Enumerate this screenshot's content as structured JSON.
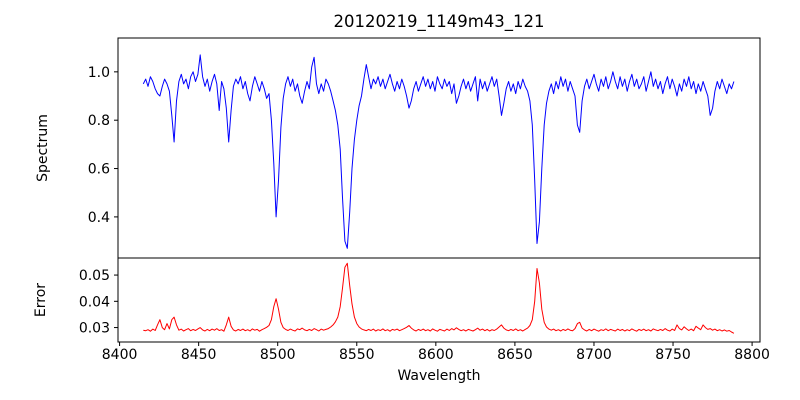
{
  "chart_data": {
    "type": "line",
    "title": "20120219_1149m43_121",
    "xlabel": "Wavelength",
    "grid": false,
    "legend": null,
    "xlim": [
      8399,
      8805
    ],
    "xticks": [
      8400,
      8450,
      8500,
      8550,
      8600,
      8650,
      8700,
      8750,
      8800
    ],
    "xtick_labels": [
      "8400",
      "8450",
      "8500",
      "8550",
      "8600",
      "8650",
      "8700",
      "8750",
      "8800"
    ],
    "panels": [
      {
        "ylabel": "Spectrum",
        "ylim": [
          0.23,
          1.14
        ],
        "yticks": [
          0.4,
          0.6,
          0.8,
          1.0
        ],
        "ytick_labels": [
          "0.4",
          "0.6",
          "0.8",
          "1.0"
        ],
        "series": {
          "name": "spectrum",
          "color": "#0000ff",
          "x_start": 8415,
          "x_step": 1.5,
          "n_points": 250,
          "values": [
            0.95,
            0.97,
            0.94,
            0.98,
            0.96,
            0.93,
            0.91,
            0.9,
            0.94,
            0.97,
            0.95,
            0.92,
            0.82,
            0.71,
            0.88,
            0.96,
            0.99,
            0.95,
            0.97,
            0.93,
            0.98,
            1.0,
            0.96,
            0.99,
            1.07,
            0.98,
            0.94,
            0.97,
            0.92,
            0.96,
            0.99,
            0.95,
            0.84,
            0.96,
            0.93,
            0.85,
            0.71,
            0.84,
            0.94,
            0.97,
            0.95,
            0.98,
            0.93,
            0.96,
            0.91,
            0.88,
            0.94,
            0.98,
            0.95,
            0.92,
            0.96,
            0.93,
            0.89,
            0.91,
            0.8,
            0.62,
            0.4,
            0.55,
            0.77,
            0.89,
            0.95,
            0.98,
            0.94,
            0.97,
            0.92,
            0.95,
            0.9,
            0.87,
            0.92,
            0.96,
            0.93,
            1.02,
            1.06,
            0.95,
            0.91,
            0.95,
            0.92,
            0.97,
            0.95,
            0.92,
            0.88,
            0.84,
            0.78,
            0.68,
            0.48,
            0.3,
            0.27,
            0.42,
            0.6,
            0.72,
            0.8,
            0.86,
            0.9,
            0.97,
            1.03,
            0.98,
            0.93,
            0.97,
            0.95,
            0.98,
            0.94,
            0.97,
            0.93,
            0.96,
            0.99,
            0.95,
            0.92,
            0.96,
            0.93,
            0.97,
            0.94,
            0.9,
            0.85,
            0.88,
            0.93,
            0.96,
            0.92,
            0.95,
            0.98,
            0.94,
            0.97,
            0.93,
            0.96,
            0.92,
            0.98,
            0.95,
            0.93,
            0.97,
            0.94,
            0.96,
            0.91,
            0.95,
            0.87,
            0.9,
            0.94,
            0.97,
            0.93,
            0.96,
            0.92,
            0.95,
            0.98,
            0.88,
            0.97,
            0.93,
            0.96,
            0.92,
            0.95,
            0.98,
            0.94,
            0.97,
            0.9,
            0.82,
            0.87,
            0.93,
            0.96,
            0.92,
            0.95,
            0.91,
            0.96,
            0.93,
            0.97,
            0.94,
            0.92,
            0.88,
            0.78,
            0.55,
            0.29,
            0.38,
            0.6,
            0.78,
            0.87,
            0.92,
            0.95,
            0.91,
            0.96,
            0.93,
            0.98,
            0.94,
            0.97,
            0.92,
            0.96,
            0.93,
            0.9,
            0.78,
            0.75,
            0.88,
            0.94,
            0.97,
            0.93,
            0.96,
            0.99,
            0.95,
            0.92,
            0.97,
            0.94,
            0.98,
            0.93,
            0.96,
            1.0,
            0.96,
            0.93,
            0.98,
            0.94,
            0.97,
            0.92,
            0.96,
            0.99,
            0.94,
            0.97,
            0.93,
            0.95,
            0.98,
            0.92,
            0.96,
            1.0,
            0.94,
            0.97,
            0.93,
            0.96,
            0.91,
            0.95,
            0.98,
            0.93,
            0.97,
            0.94,
            0.9,
            0.95,
            0.92,
            0.97,
            0.94,
            0.98,
            0.93,
            0.96,
            0.91,
            0.95,
            0.92,
            0.96,
            0.93,
            0.9,
            0.82,
            0.85,
            0.92,
            0.96,
            0.93,
            0.97,
            0.94,
            0.91,
            0.95,
            0.93,
            0.96
          ]
        }
      },
      {
        "ylabel": "Error",
        "ylim": [
          0.0245,
          0.0565
        ],
        "yticks": [
          0.03,
          0.04,
          0.05
        ],
        "ytick_labels": [
          "0.03",
          "0.04",
          "0.05"
        ],
        "series": {
          "name": "error",
          "color": "#ff0000",
          "x_start": 8415,
          "x_step": 1.5,
          "n_points": 250,
          "values": [
            0.029,
            0.0288,
            0.0292,
            0.0286,
            0.0294,
            0.0289,
            0.031,
            0.033,
            0.03,
            0.0292,
            0.0315,
            0.0295,
            0.033,
            0.034,
            0.031,
            0.029,
            0.0294,
            0.0287,
            0.0292,
            0.0296,
            0.0288,
            0.0293,
            0.0289,
            0.0295,
            0.03,
            0.0291,
            0.0287,
            0.0293,
            0.0288,
            0.0294,
            0.029,
            0.0296,
            0.0289,
            0.0292,
            0.0286,
            0.031,
            0.034,
            0.0305,
            0.0291,
            0.0287,
            0.0293,
            0.0289,
            0.0294,
            0.0288,
            0.0292,
            0.0287,
            0.0295,
            0.029,
            0.0293,
            0.0286,
            0.0292,
            0.0296,
            0.0301,
            0.0308,
            0.033,
            0.038,
            0.041,
            0.037,
            0.032,
            0.03,
            0.0293,
            0.0289,
            0.0294,
            0.029,
            0.0287,
            0.0295,
            0.0292,
            0.0298,
            0.0291,
            0.0288,
            0.0293,
            0.0289,
            0.0296,
            0.0292,
            0.0287,
            0.0294,
            0.029,
            0.0293,
            0.0296,
            0.0302,
            0.031,
            0.0322,
            0.034,
            0.038,
            0.045,
            0.053,
            0.0545,
            0.046,
            0.039,
            0.034,
            0.0315,
            0.0302,
            0.0295,
            0.0291,
            0.0288,
            0.0293,
            0.0289,
            0.0294,
            0.0287,
            0.0292,
            0.0289,
            0.0295,
            0.0288,
            0.0292,
            0.0286,
            0.0293,
            0.029,
            0.0294,
            0.0288,
            0.0292,
            0.0296,
            0.0301,
            0.0308,
            0.0298,
            0.0291,
            0.0287,
            0.0293,
            0.0289,
            0.0294,
            0.0288,
            0.0292,
            0.0287,
            0.0295,
            0.029,
            0.0286,
            0.0293,
            0.029,
            0.0287,
            0.0294,
            0.0289,
            0.0296,
            0.0291,
            0.0299,
            0.0293,
            0.0288,
            0.0292,
            0.0287,
            0.0293,
            0.029,
            0.0287,
            0.0292,
            0.0298,
            0.029,
            0.0294,
            0.0288,
            0.0293,
            0.0287,
            0.0292,
            0.0289,
            0.0294,
            0.0302,
            0.031,
            0.0298,
            0.0291,
            0.0288,
            0.0293,
            0.0289,
            0.0295,
            0.0288,
            0.0292,
            0.0287,
            0.0293,
            0.0298,
            0.0308,
            0.033,
            0.04,
            0.0525,
            0.047,
            0.037,
            0.032,
            0.0302,
            0.0294,
            0.029,
            0.0294,
            0.0288,
            0.0292,
            0.0287,
            0.0293,
            0.0289,
            0.0295,
            0.029,
            0.0288,
            0.0296,
            0.0315,
            0.032,
            0.0298,
            0.0291,
            0.0287,
            0.0293,
            0.0288,
            0.0294,
            0.029,
            0.0286,
            0.0292,
            0.0289,
            0.0295,
            0.0288,
            0.0293,
            0.029,
            0.0287,
            0.0294,
            0.0289,
            0.0293,
            0.0287,
            0.0292,
            0.0288,
            0.0295,
            0.029,
            0.0286,
            0.0293,
            0.0289,
            0.0294,
            0.0288,
            0.0292,
            0.0287,
            0.0295,
            0.0291,
            0.0288,
            0.0293,
            0.0289,
            0.0296,
            0.029,
            0.0287,
            0.0294,
            0.0289,
            0.031,
            0.0296,
            0.0291,
            0.0303,
            0.0295,
            0.0289,
            0.0294,
            0.0288,
            0.0305,
            0.0298,
            0.0292,
            0.031,
            0.03,
            0.0293,
            0.0296,
            0.029,
            0.0294,
            0.0288,
            0.0292,
            0.0287,
            0.0291,
            0.0286,
            0.0289,
            0.0283,
            0.0278
          ]
        }
      }
    ],
    "colors": {
      "spectrum_line": "#0000ff",
      "error_line": "#ff0000",
      "axis": "#000000",
      "background": "#ffffff"
    }
  }
}
